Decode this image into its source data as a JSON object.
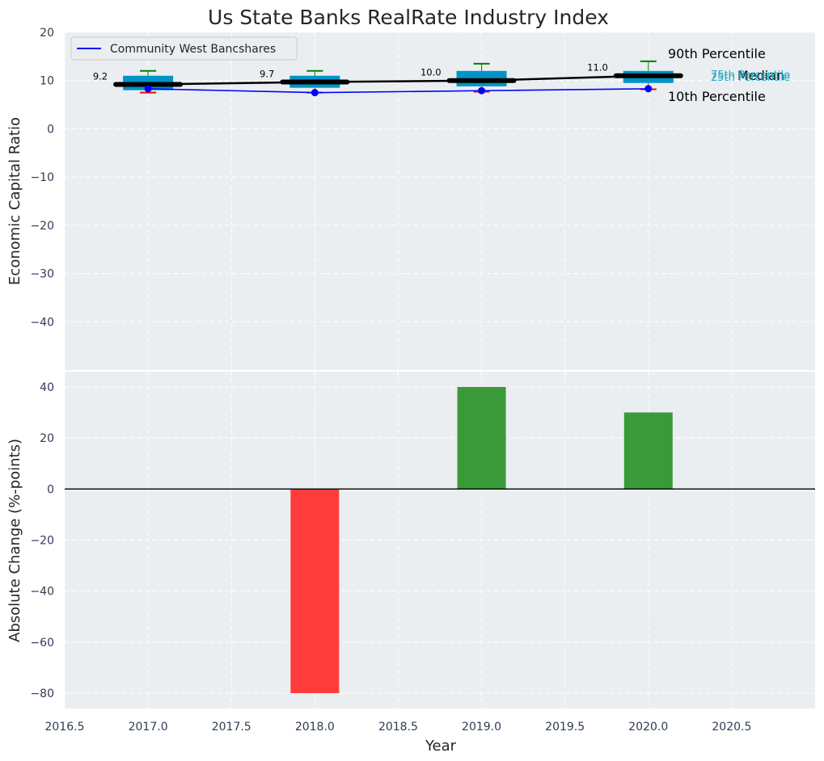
{
  "chart_data": [
    {
      "type": "box",
      "title": "Us State Banks RealRate Industry Index",
      "xlabel": "",
      "ylabel": "Economic Capital Ratio",
      "xlim": [
        2016.5,
        2021.0
      ],
      "ylim": [
        -50,
        20
      ],
      "yticks": [
        20,
        10,
        0,
        -10,
        -20,
        -30,
        -40
      ],
      "categories": [
        "2017.0",
        "2018.0",
        "2019.0",
        "2020.0"
      ],
      "x": [
        2017,
        2018,
        2019,
        2020
      ],
      "percentile_10": [
        7.5,
        7.5,
        7.7,
        8.2
      ],
      "percentile_25": [
        8.0,
        8.5,
        8.8,
        9.5
      ],
      "median": [
        9.2,
        9.7,
        10.0,
        11.0
      ],
      "percentile_75": [
        11.0,
        11.0,
        12.0,
        12.0
      ],
      "percentile_90": [
        12.0,
        12.0,
        13.5,
        14.0
      ],
      "median_labels": [
        "9.2",
        "9.7",
        "10.0",
        "11.0"
      ],
      "series": [
        {
          "name": "Community West Bancshares",
          "values": [
            8.3,
            7.5,
            7.9,
            8.3
          ],
          "color": "#0000ff"
        },
        {
          "name": "Median",
          "values": [
            9.2,
            9.7,
            10.0,
            11.0
          ],
          "color": "#000000"
        }
      ],
      "legend": {
        "position": "top-left",
        "entries": [
          "Community West Bancshares"
        ]
      },
      "annotations": {
        "p90": "90th Percentile",
        "median": "Median",
        "p10": "10th Percentile",
        "p75": "75th Percentile",
        "p25": "25th Percentile"
      },
      "colors": {
        "box": "#0095c8",
        "whisker_high": "#008000",
        "whisker_low": "#ff0000",
        "background": "#eaeef0"
      }
    },
    {
      "type": "bar",
      "xlabel": "Year",
      "ylabel": "Absolute Change (%-points)",
      "xlim": [
        2016.5,
        2021.0
      ],
      "ylim": [
        -86,
        46
      ],
      "yticks": [
        40,
        20,
        0,
        -20,
        -40,
        -60,
        -80
      ],
      "xticks": [
        "2016.5",
        "2017.0",
        "2017.5",
        "2018.0",
        "2018.5",
        "2019.0",
        "2019.5",
        "2020.0",
        "2020.5"
      ],
      "x": [
        2017,
        2018,
        2019,
        2020
      ],
      "values": [
        0,
        -80,
        40,
        30
      ],
      "colors": {
        "positive": "#3a9a3a",
        "negative": "#ff3c3c"
      }
    }
  ]
}
